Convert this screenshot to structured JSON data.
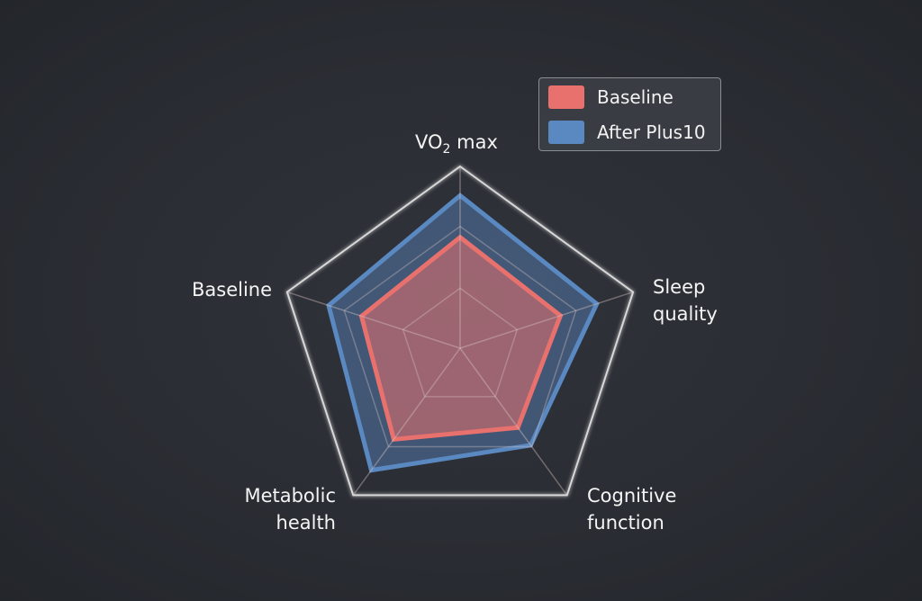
{
  "chart_data": {
    "type": "radar",
    "title": "",
    "axes": [
      "VO2 max",
      "Sleep quality",
      "Cognitive function",
      "Metabolic health",
      "Baseline"
    ],
    "axis_labels": {
      "vo2_main": "VO",
      "vo2_sub": "2",
      "vo2_tail": " max",
      "sleep_1": "Sleep",
      "sleep_2": "quality",
      "cog_1": "Cognitive",
      "cog_2": "function",
      "met_1": "Metabolic",
      "met_2": "health",
      "base": "Baseline"
    },
    "range": [
      0,
      100
    ],
    "grid_levels": [
      33,
      67,
      100
    ],
    "series": [
      {
        "name": "Baseline",
        "color": "#e8716e",
        "values": [
          61,
          58,
          54,
          62,
          57
        ]
      },
      {
        "name": "After Plus10",
        "color": "#5a88c0",
        "values": [
          84,
          79,
          66,
          83,
          76
        ]
      }
    ],
    "legend_placement": "top-right"
  }
}
